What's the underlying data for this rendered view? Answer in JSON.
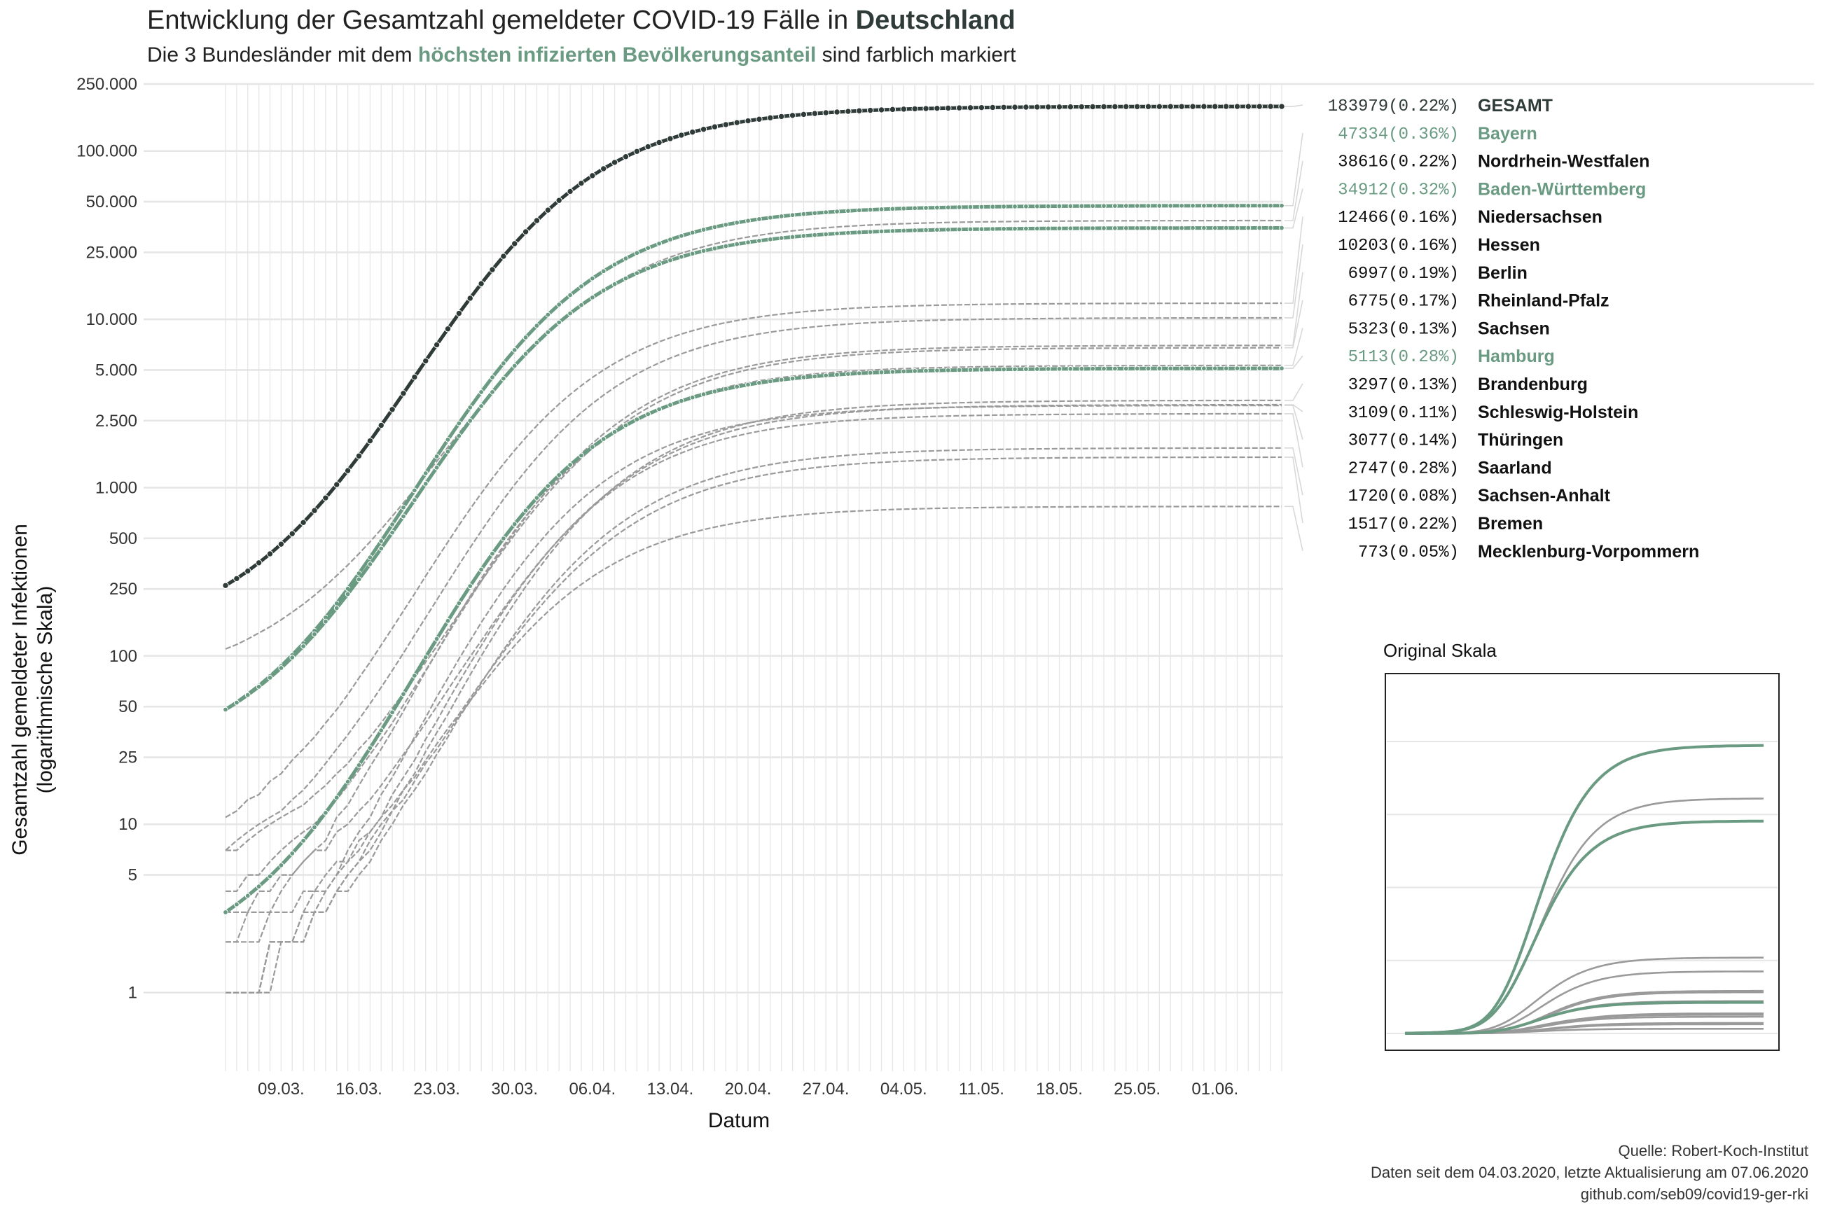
{
  "title": {
    "prefix": "Entwicklung der Gesamtzahl gemeldeter COVID-19 Fälle in",
    "bold": "Deutschland"
  },
  "subtitle": {
    "prefix": "Die 3 Bundesländer mit dem",
    "highlight": "höchsten infizierten Bevölkerungsanteil",
    "suffix": "sind farblich markiert"
  },
  "colors": {
    "total": "#2f3b38",
    "highlight": "#6a9b82",
    "other": "#9a9a9a",
    "grid": "#e6e6e6"
  },
  "chart_data": {
    "type": "line",
    "title": "Entwicklung der Gesamtzahl gemeldeter COVID-19 Fälle in Deutschland",
    "xlabel": "Datum",
    "ylabel": "Gesamtzahl gemeldeter Infektionen",
    "ylabel2": "(logarithmische Skala)",
    "yscale": "log",
    "ylim": [
      0.5,
      250000
    ],
    "x_start": "04.03.2020",
    "x_end": "07.06.2020",
    "n_days": 96,
    "x_tick_labels": [
      "09.03.",
      "16.03.",
      "23.03.",
      "30.03.",
      "06.04.",
      "13.04.",
      "20.04.",
      "27.04.",
      "04.05.",
      "11.05.",
      "18.05.",
      "25.05.",
      "01.06."
    ],
    "x_tick_day_index": [
      5,
      12,
      19,
      26,
      33,
      40,
      47,
      54,
      61,
      68,
      75,
      82,
      89
    ],
    "y_ticks": [
      1,
      5,
      10,
      25,
      50,
      100,
      250,
      500,
      1000,
      2500,
      5000,
      10000,
      25000,
      50000,
      100000,
      250000
    ],
    "y_tick_labels": [
      "1",
      "5",
      "10",
      "25",
      "50",
      "100",
      "250",
      "500",
      "1.000",
      "2.500",
      "5.000",
      "10.000",
      "25.000",
      "50.000",
      "100.000",
      "250.000"
    ],
    "grid": true,
    "series": [
      {
        "name": "GESAMT",
        "final": 183979,
        "share": "(0.22%)",
        "group": "total",
        "start": 262
      },
      {
        "name": "Bayern",
        "final": 47334,
        "share": "(0.36%)",
        "group": "highlight",
        "start": 48
      },
      {
        "name": "Nordrhein-Westfalen",
        "final": 38616,
        "share": "(0.22%)",
        "group": "other",
        "start": 110
      },
      {
        "name": "Baden-Württemberg",
        "final": 34912,
        "share": "(0.32%)",
        "group": "highlight",
        "start": 48
      },
      {
        "name": "Niedersachsen",
        "final": 12466,
        "share": "(0.16%)",
        "group": "other",
        "start": 11
      },
      {
        "name": "Hessen",
        "final": 10203,
        "share": "(0.16%)",
        "group": "other",
        "start": 7
      },
      {
        "name": "Berlin",
        "final": 6997,
        "share": "(0.19%)",
        "group": "other",
        "start": 4
      },
      {
        "name": "Rheinland-Pfalz",
        "final": 6775,
        "share": "(0.17%)",
        "group": "other",
        "start": 7
      },
      {
        "name": "Sachsen",
        "final": 5323,
        "share": "(0.13%)",
        "group": "other",
        "start": 2
      },
      {
        "name": "Hamburg",
        "final": 5113,
        "share": "(0.28%)",
        "group": "highlight",
        "start": 3
      },
      {
        "name": "Brandenburg",
        "final": 3297,
        "share": "(0.13%)",
        "group": "other",
        "start": 1
      },
      {
        "name": "Schleswig-Holstein",
        "final": 3109,
        "share": "(0.11%)",
        "group": "other",
        "start": 3
      },
      {
        "name": "Thüringen",
        "final": 3077,
        "share": "(0.14%)",
        "group": "other",
        "start": 1
      },
      {
        "name": "Saarland",
        "final": 2747,
        "share": "(0.28%)",
        "group": "other",
        "start": 1
      },
      {
        "name": "Sachsen-Anhalt",
        "final": 1720,
        "share": "(0.08%)",
        "group": "other",
        "start": 1
      },
      {
        "name": "Bremen",
        "final": 1517,
        "share": "(0.22%)",
        "group": "other",
        "start": 2
      },
      {
        "name": "Mecklenburg-Vorpommern",
        "final": 773,
        "share": "(0.05%)",
        "group": "other",
        "start": 1
      }
    ],
    "inset": {
      "title": "Original Skala",
      "type": "line",
      "yscale": "linear"
    }
  },
  "caption": {
    "line1": "Quelle: Robert-Koch-Institut",
    "line2": "Daten seit dem 04.03.2020, letzte Aktualisierung am 07.06.2020",
    "line3": "github.com/seb09/covid19-ger-rki"
  }
}
